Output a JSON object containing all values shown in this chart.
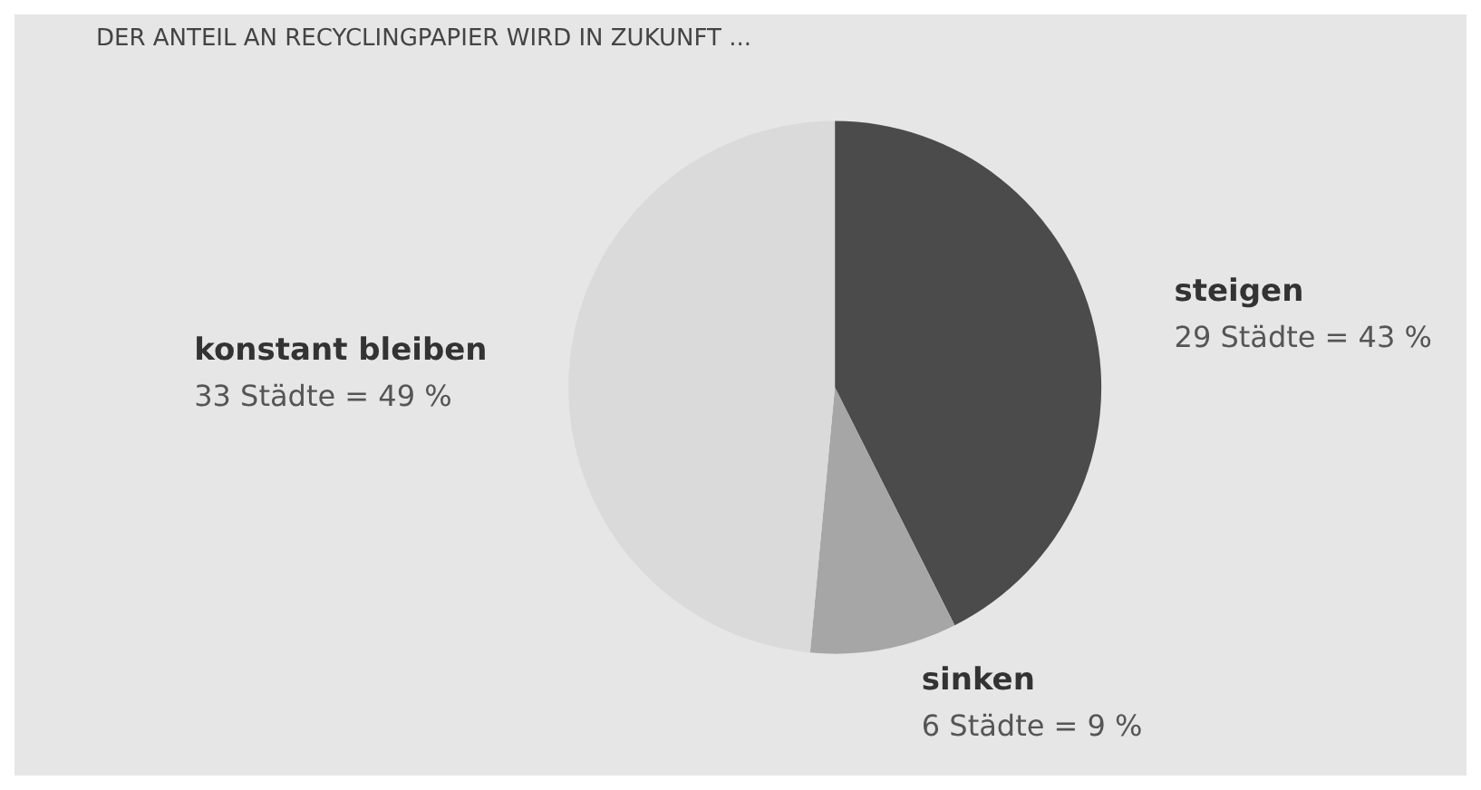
{
  "chart_data": {
    "type": "pie",
    "title": "DER ANTEIL AN RECYCLINGPAPIER WIRD IN ZUKUNFT ...",
    "categories": [
      "steigen",
      "sinken",
      "konstant bleiben"
    ],
    "values": [
      43,
      9,
      49
    ],
    "colors": [
      "#4b4b4b",
      "#a6a6a6",
      "#dadada"
    ],
    "value_labels": [
      "29 Städte = 43 %",
      "6 Städte = 9 %",
      "33 Städte = 49 %"
    ],
    "legend": false
  }
}
